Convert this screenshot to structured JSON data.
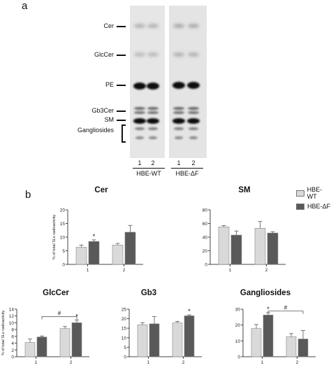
{
  "panel_a": {
    "letter": "a",
    "band_labels": [
      "Cer",
      "GlcCer",
      "PE",
      "Gb3Cer",
      "SM",
      "Gangliosides"
    ],
    "lanes": [
      "1",
      "2",
      "1",
      "2"
    ],
    "groups": [
      "HBE-WT",
      "HBE-ΔF"
    ]
  },
  "panel_b": {
    "letter": "b",
    "legend": [
      {
        "label": "HBE-WT",
        "color": "#d9d9d9"
      },
      {
        "label": "HBE-ΔF",
        "color": "#595959"
      }
    ],
    "ylabel": "% of total SLs radioactivity"
  },
  "chart_data": [
    {
      "type": "bar",
      "title": "Cer",
      "categories": [
        "1",
        "2"
      ],
      "series": [
        {
          "name": "HBE-WT",
          "values": [
            6.3,
            7.1
          ],
          "errors": [
            0.8,
            0.6
          ]
        },
        {
          "name": "HBE-ΔF",
          "values": [
            8.4,
            11.8
          ],
          "errors": [
            0.6,
            2.5
          ]
        }
      ],
      "ylim": [
        0,
        20
      ],
      "yticks": [
        0,
        5,
        10,
        15,
        20
      ],
      "ylabel": "% of total SLs radioactivity",
      "annotations": [
        {
          "text": "*",
          "category": "1",
          "series": "HBE-ΔF"
        }
      ],
      "brackets": []
    },
    {
      "type": "bar",
      "title": "SM",
      "categories": [
        "1",
        "2"
      ],
      "series": [
        {
          "name": "HBE-WT",
          "values": [
            55,
            53
          ],
          "errors": [
            2,
            10
          ]
        },
        {
          "name": "HBE-ΔF",
          "values": [
            43,
            46
          ],
          "errors": [
            6,
            2
          ]
        }
      ],
      "ylim": [
        0,
        80
      ],
      "yticks": [
        0,
        20,
        40,
        60,
        80
      ],
      "ylabel": "",
      "annotations": [],
      "brackets": []
    },
    {
      "type": "bar",
      "title": "GlcCer",
      "categories": [
        "1",
        "2"
      ],
      "series": [
        {
          "name": "HBE-WT",
          "values": [
            4.2,
            8.3
          ],
          "errors": [
            1.0,
            0.6
          ]
        },
        {
          "name": "HBE-ΔF",
          "values": [
            5.8,
            10.0
          ],
          "errors": [
            0.3,
            0.8
          ]
        }
      ],
      "ylim": [
        0,
        14
      ],
      "yticks": [
        0,
        2,
        4,
        6,
        8,
        10,
        12,
        14
      ],
      "ylabel": "% of total SLs radioactivity",
      "annotations": [
        {
          "text": "*",
          "category": "2",
          "series": "HBE-ΔF"
        }
      ],
      "brackets": [
        {
          "text": "#",
          "from": [
            0,
            1
          ],
          "to": [
            1,
            1
          ],
          "y": 11.8
        }
      ]
    },
    {
      "type": "bar",
      "title": "Gb3",
      "categories": [
        "1",
        "2"
      ],
      "series": [
        {
          "name": "HBE-WT",
          "values": [
            16.8,
            17.8
          ],
          "errors": [
            1.0,
            0.8
          ]
        },
        {
          "name": "HBE-ΔF",
          "values": [
            17.3,
            21.5
          ],
          "errors": [
            3.8,
            0.5
          ]
        }
      ],
      "ylim": [
        0,
        25
      ],
      "yticks": [
        0,
        5,
        10,
        15,
        20,
        25
      ],
      "ylabel": "",
      "annotations": [
        {
          "text": "*",
          "category": "2",
          "series": "HBE-ΔF"
        }
      ],
      "brackets": []
    },
    {
      "type": "bar",
      "title": "Gangliosides",
      "categories": [
        "1",
        "2"
      ],
      "series": [
        {
          "name": "HBE-WT",
          "values": [
            17.8,
            12.6
          ],
          "errors": [
            2.5,
            2.0
          ]
        },
        {
          "name": "HBE-ΔF",
          "values": [
            26.3,
            11.2
          ],
          "errors": [
            1.5,
            5.3
          ]
        }
      ],
      "ylim": [
        0,
        30
      ],
      "yticks": [
        0,
        10,
        20,
        30
      ],
      "ylabel": "",
      "annotations": [
        {
          "text": "*",
          "category": "1",
          "series": "HBE-ΔF"
        }
      ],
      "brackets": [
        {
          "text": "#",
          "from": [
            0,
            1
          ],
          "to": [
            1,
            1
          ],
          "y": 28.8
        }
      ]
    }
  ]
}
